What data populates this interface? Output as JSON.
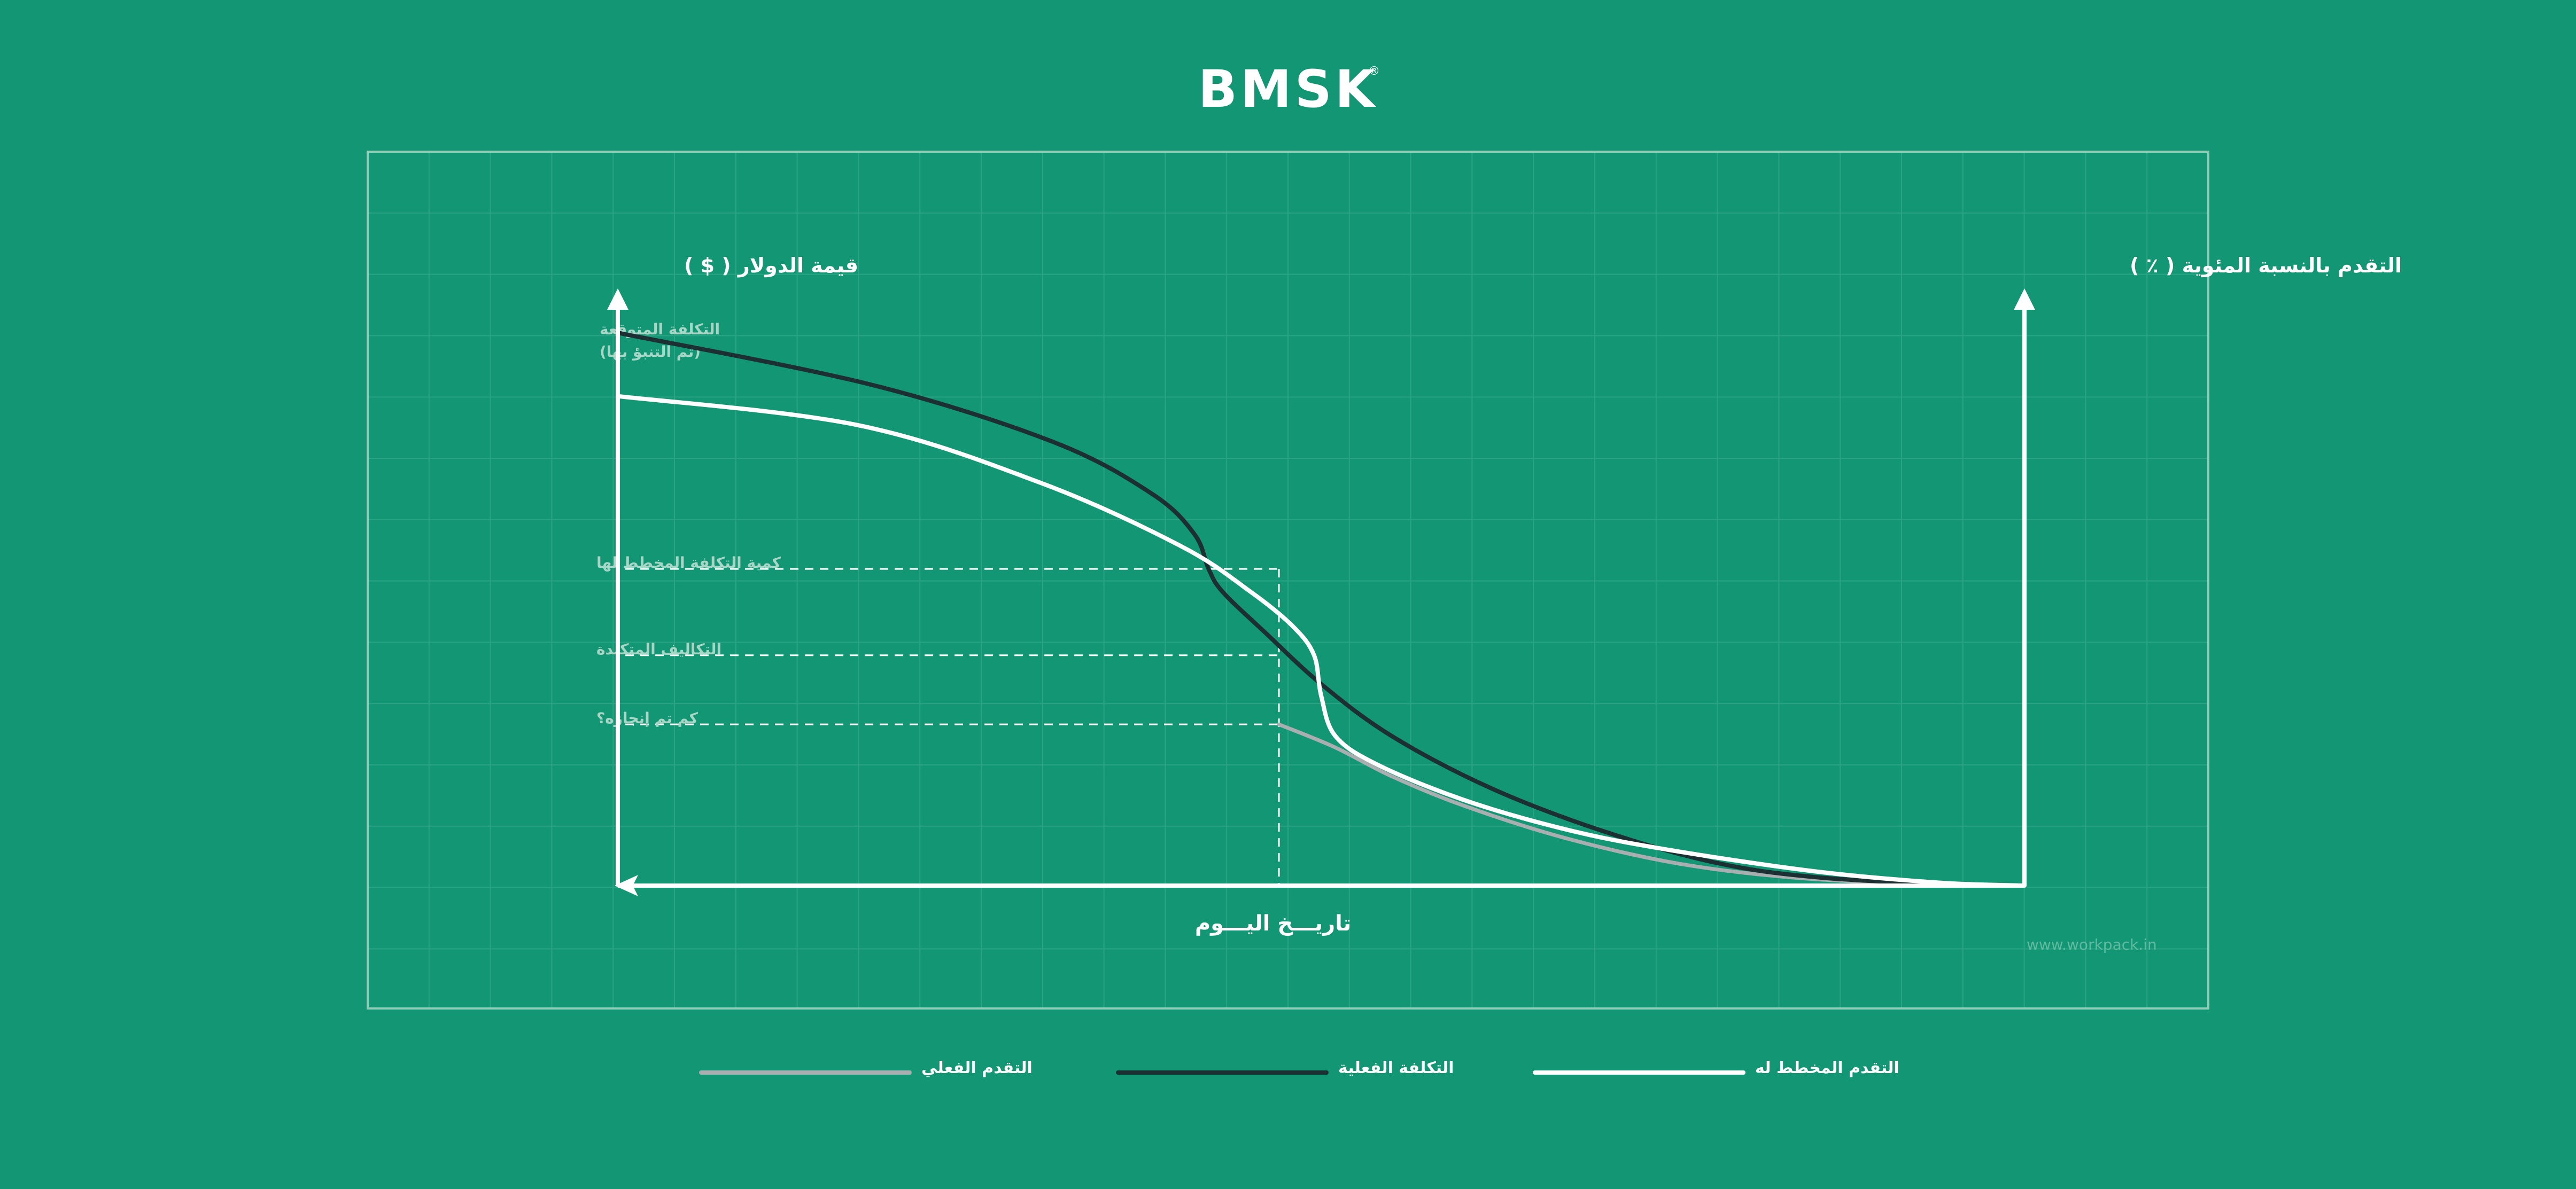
{
  "brand": {
    "logo_text": "BMSK",
    "registered_mark": "®"
  },
  "watermark": "www.workpack.in",
  "colors": {
    "background": "#139674",
    "grid": "#2aa483",
    "frame": "#8fcdb9",
    "planned": "#ffffff",
    "actual_cost": "#1c2f33",
    "actual_progress": "#a9aeb0",
    "label_muted": "#a7d6c7",
    "watermark": "#5fbaa0"
  },
  "chart_data": {
    "type": "line",
    "title": "",
    "xlabel": "تاريـــخ اليـــوم",
    "ylabel_left": "قيمة الدولار ( $ )",
    "ylabel_right": "التقدم بالنسبة المئوية ( ٪ )",
    "x_direction": "right-to-left",
    "grid": true,
    "legend_position": "bottom",
    "xlim": [
      0,
      100
    ],
    "ylim": [
      0,
      100
    ],
    "today": 53,
    "y_annotations": [
      {
        "label": "كمية التكلفة المخطط لها",
        "y": 55
      },
      {
        "label": "التكاليف المتكبدة",
        "y": 40
      },
      {
        "label": "كم تم إنجازه؟",
        "y": 28
      }
    ],
    "forecast_label": [
      "التكلفة المتوقعة",
      "(تم التنبؤ بها)"
    ],
    "series": [
      {
        "name": "التقدم المخطط له",
        "key": "planned",
        "points": [
          [
            0,
            0
          ],
          [
            6,
            0.5
          ],
          [
            15,
            2.5
          ],
          [
            26,
            6.5
          ],
          [
            33,
            10
          ],
          [
            40,
            15
          ],
          [
            46,
            21
          ],
          [
            49,
            26
          ],
          [
            50,
            33
          ],
          [
            50.5,
            40
          ],
          [
            52,
            45
          ],
          [
            55,
            51
          ],
          [
            60,
            59
          ],
          [
            70,
            70
          ],
          [
            83,
            80
          ],
          [
            100,
            85
          ]
        ]
      },
      {
        "name": "التكلفة الفعلية",
        "key": "actual_cost",
        "points": [
          [
            0,
            0
          ],
          [
            6,
            0.3
          ],
          [
            15,
            1.5
          ],
          [
            22,
            4
          ],
          [
            30,
            9.5
          ],
          [
            38,
            17
          ],
          [
            45,
            26
          ],
          [
            50,
            35
          ],
          [
            54,
            44
          ],
          [
            57,
            51
          ],
          [
            58,
            55
          ],
          [
            59,
            61
          ],
          [
            62,
            68
          ],
          [
            69,
            77
          ],
          [
            82,
            87
          ],
          [
            100,
            96
          ]
        ]
      },
      {
        "name": "التقدم الفعلي",
        "key": "actual_progress",
        "points": [
          [
            0,
            0
          ],
          [
            8,
            0.3
          ],
          [
            17,
            1.5
          ],
          [
            25,
            4
          ],
          [
            33,
            8.5
          ],
          [
            40,
            14
          ],
          [
            45,
            19
          ],
          [
            49,
            24
          ],
          [
            53,
            28
          ]
        ]
      }
    ],
    "legend_order": [
      "planned",
      "actual_cost",
      "actual_progress"
    ]
  }
}
